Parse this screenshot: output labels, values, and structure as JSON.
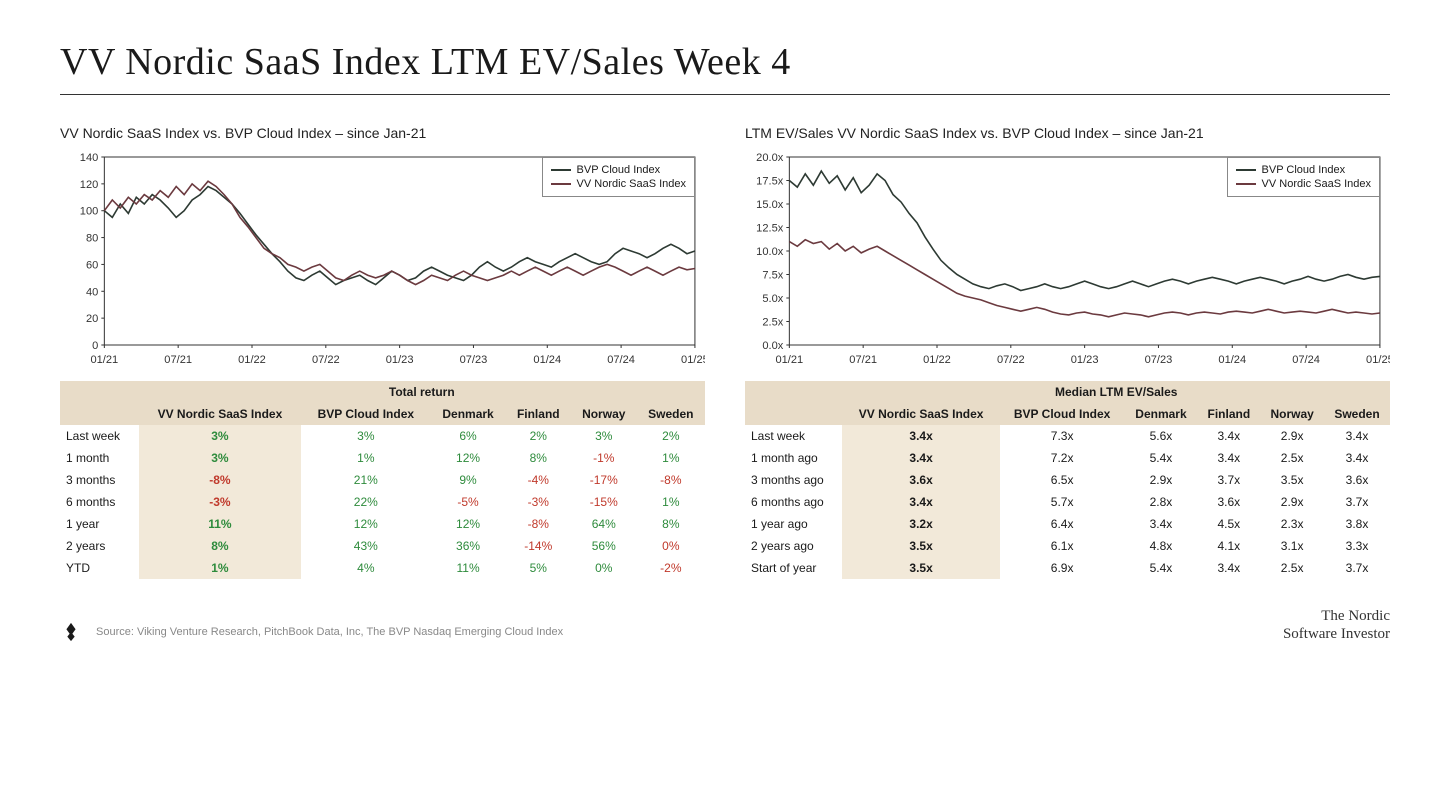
{
  "title": "VV Nordic SaaS Index LTM EV/Sales Week 4",
  "footer_source": "Source: Viking Venture Research, PitchBook Data, Inc, The BVP Nasdaq Emerging Cloud Index",
  "footer_brand_line1": "The Nordic",
  "footer_brand_line2": "Software Investor",
  "colors": {
    "series_bvp": "#2d3a33",
    "series_vv": "#6b3a3f",
    "axis": "#333333",
    "header_band": "#e8dcc8",
    "highlight_col": "#f2e9d9",
    "positive": "#2e8b3c",
    "negative": "#c0392b",
    "background": "#ffffff",
    "text": "#1a1a1a"
  },
  "left": {
    "chart_title": "VV Nordic SaaS Index vs. BVP Cloud Index – since Jan-21",
    "y": {
      "min": 0,
      "max": 140,
      "step": 20,
      "fmt": "int"
    },
    "x_labels": [
      "01/21",
      "07/21",
      "01/22",
      "07/22",
      "01/23",
      "07/23",
      "01/24",
      "07/24",
      "01/25"
    ],
    "legend": [
      {
        "label": "BVP Cloud Index",
        "color": "#2d3a33"
      },
      {
        "label": "VV Nordic SaaS Index",
        "color": "#6b3a3f"
      }
    ],
    "series": {
      "bvp": [
        100,
        95,
        105,
        98,
        110,
        105,
        112,
        108,
        102,
        95,
        100,
        108,
        112,
        118,
        115,
        110,
        105,
        98,
        90,
        82,
        75,
        68,
        62,
        55,
        50,
        48,
        52,
        55,
        50,
        45,
        48,
        50,
        52,
        48,
        45,
        50,
        55,
        52,
        48,
        50,
        55,
        58,
        55,
        52,
        50,
        48,
        52,
        58,
        62,
        58,
        55,
        58,
        62,
        65,
        62,
        60,
        58,
        62,
        65,
        68,
        65,
        62,
        60,
        62,
        68,
        72,
        70,
        68,
        65,
        68,
        72,
        75,
        72,
        68,
        70
      ],
      "vv": [
        100,
        108,
        102,
        110,
        105,
        112,
        108,
        115,
        110,
        118,
        112,
        120,
        115,
        122,
        118,
        112,
        105,
        95,
        88,
        80,
        72,
        68,
        65,
        60,
        58,
        55,
        58,
        60,
        55,
        50,
        48,
        52,
        55,
        52,
        50,
        52,
        55,
        52,
        48,
        45,
        48,
        52,
        50,
        48,
        52,
        55,
        52,
        50,
        48,
        50,
        52,
        55,
        52,
        55,
        58,
        55,
        52,
        55,
        58,
        55,
        52,
        55,
        58,
        60,
        58,
        55,
        52,
        55,
        58,
        55,
        52,
        55,
        58,
        56,
        57
      ]
    },
    "table": {
      "super_header": "Total return",
      "columns": [
        "",
        "VV Nordic SaaS Index",
        "BVP Cloud Index",
        "Denmark",
        "Finland",
        "Norway",
        "Sweden"
      ],
      "rows": [
        {
          "label": "Last week",
          "cells": [
            "3%",
            "3%",
            "6%",
            "2%",
            "3%",
            "2%"
          ],
          "signs": [
            1,
            1,
            1,
            1,
            1,
            1
          ]
        },
        {
          "label": "1 month",
          "cells": [
            "3%",
            "1%",
            "12%",
            "8%",
            "-1%",
            "1%"
          ],
          "signs": [
            1,
            1,
            1,
            1,
            -1,
            1
          ]
        },
        {
          "label": "3 months",
          "cells": [
            "-8%",
            "21%",
            "9%",
            "-4%",
            "-17%",
            "-8%"
          ],
          "signs": [
            -1,
            1,
            1,
            -1,
            -1,
            -1
          ]
        },
        {
          "label": "6 months",
          "cells": [
            "-3%",
            "22%",
            "-5%",
            "-3%",
            "-15%",
            "1%"
          ],
          "signs": [
            -1,
            1,
            -1,
            -1,
            -1,
            1
          ]
        },
        {
          "label": "1 year",
          "cells": [
            "11%",
            "12%",
            "12%",
            "-8%",
            "64%",
            "8%"
          ],
          "signs": [
            1,
            1,
            1,
            -1,
            1,
            1
          ]
        },
        {
          "label": "2 years",
          "cells": [
            "8%",
            "43%",
            "36%",
            "-14%",
            "56%",
            "0%"
          ],
          "signs": [
            1,
            1,
            1,
            -1,
            1,
            -1
          ]
        },
        {
          "label": "YTD",
          "cells": [
            "1%",
            "4%",
            "11%",
            "5%",
            "0%",
            "-2%"
          ],
          "signs": [
            1,
            1,
            1,
            1,
            1,
            -1
          ]
        }
      ]
    }
  },
  "right": {
    "chart_title": "LTM EV/Sales VV Nordic SaaS Index vs. BVP Cloud Index – since Jan-21",
    "y": {
      "min": 0,
      "max": 20,
      "step": 2.5,
      "fmt": "mult"
    },
    "x_labels": [
      "01/21",
      "07/21",
      "01/22",
      "07/22",
      "01/23",
      "07/23",
      "01/24",
      "07/24",
      "01/25"
    ],
    "legend": [
      {
        "label": "BVP Cloud Index",
        "color": "#2d3a33"
      },
      {
        "label": "VV Nordic SaaS Index",
        "color": "#6b3a3f"
      }
    ],
    "series": {
      "bvp": [
        17.5,
        16.8,
        18.2,
        17.0,
        18.5,
        17.2,
        18.0,
        16.5,
        17.8,
        16.2,
        17.0,
        18.2,
        17.5,
        16.0,
        15.2,
        14.0,
        13.0,
        11.5,
        10.2,
        9.0,
        8.2,
        7.5,
        7.0,
        6.5,
        6.2,
        6.0,
        6.3,
        6.5,
        6.2,
        5.8,
        6.0,
        6.2,
        6.5,
        6.2,
        6.0,
        6.2,
        6.5,
        6.8,
        6.5,
        6.2,
        6.0,
        6.2,
        6.5,
        6.8,
        6.5,
        6.2,
        6.5,
        6.8,
        7.0,
        6.8,
        6.5,
        6.8,
        7.0,
        7.2,
        7.0,
        6.8,
        6.5,
        6.8,
        7.0,
        7.2,
        7.0,
        6.8,
        6.5,
        6.8,
        7.0,
        7.3,
        7.0,
        6.8,
        7.0,
        7.3,
        7.5,
        7.2,
        7.0,
        7.2,
        7.3
      ],
      "vv": [
        11.0,
        10.5,
        11.2,
        10.8,
        11.0,
        10.2,
        10.8,
        10.0,
        10.5,
        9.8,
        10.2,
        10.5,
        10.0,
        9.5,
        9.0,
        8.5,
        8.0,
        7.5,
        7.0,
        6.5,
        6.0,
        5.5,
        5.2,
        5.0,
        4.8,
        4.5,
        4.2,
        4.0,
        3.8,
        3.6,
        3.8,
        4.0,
        3.8,
        3.5,
        3.3,
        3.2,
        3.4,
        3.5,
        3.3,
        3.2,
        3.0,
        3.2,
        3.4,
        3.3,
        3.2,
        3.0,
        3.2,
        3.4,
        3.5,
        3.4,
        3.2,
        3.4,
        3.5,
        3.4,
        3.3,
        3.5,
        3.6,
        3.5,
        3.4,
        3.6,
        3.8,
        3.6,
        3.4,
        3.5,
        3.6,
        3.5,
        3.4,
        3.6,
        3.8,
        3.6,
        3.4,
        3.5,
        3.4,
        3.3,
        3.4
      ]
    },
    "table": {
      "super_header": "Median LTM EV/Sales",
      "columns": [
        "",
        "VV Nordic SaaS Index",
        "BVP Cloud Index",
        "Denmark",
        "Finland",
        "Norway",
        "Sweden"
      ],
      "rows": [
        {
          "label": "Last week",
          "cells": [
            "3.4x",
            "7.3x",
            "5.6x",
            "3.4x",
            "2.9x",
            "3.4x"
          ]
        },
        {
          "label": "1 month ago",
          "cells": [
            "3.4x",
            "7.2x",
            "5.4x",
            "3.4x",
            "2.5x",
            "3.4x"
          ]
        },
        {
          "label": "3 months ago",
          "cells": [
            "3.6x",
            "6.5x",
            "2.9x",
            "3.7x",
            "3.5x",
            "3.6x"
          ]
        },
        {
          "label": "6 months ago",
          "cells": [
            "3.4x",
            "5.7x",
            "2.8x",
            "3.6x",
            "2.9x",
            "3.7x"
          ]
        },
        {
          "label": "1 year ago",
          "cells": [
            "3.2x",
            "6.4x",
            "3.4x",
            "4.5x",
            "2.3x",
            "3.8x"
          ]
        },
        {
          "label": "2 years ago",
          "cells": [
            "3.5x",
            "6.1x",
            "4.8x",
            "4.1x",
            "3.1x",
            "3.3x"
          ]
        },
        {
          "label": "Start of year",
          "cells": [
            "3.5x",
            "6.9x",
            "5.4x",
            "3.4x",
            "2.5x",
            "3.7x"
          ]
        }
      ]
    }
  }
}
